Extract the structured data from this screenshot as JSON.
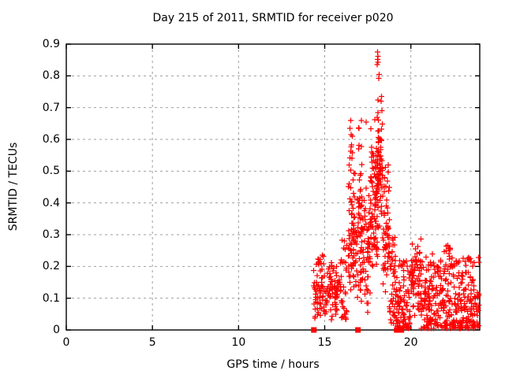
{
  "chart_data": {
    "type": "scatter",
    "title": "Day 215 of 2011, SRMTID for receiver p020",
    "xlabel": "GPS time / hours",
    "ylabel": "SRMTID / TECUs",
    "xlim": [
      0,
      24
    ],
    "ylim": [
      0,
      0.9
    ],
    "xticks": [
      0,
      5,
      10,
      15,
      20
    ],
    "xtick_labels": [
      "0",
      "5",
      "10",
      "15",
      "20"
    ],
    "yticks": [
      0,
      0.1,
      0.2,
      0.3,
      0.4,
      0.5,
      0.6,
      0.7,
      0.8,
      0.9
    ],
    "ytick_labels": [
      "0",
      "0.1",
      "0.2",
      "0.3",
      "0.4",
      "0.5",
      "0.6",
      "0.7",
      "0.8",
      "0.9"
    ],
    "grid": true,
    "grid_style": "dashed",
    "grid_color": "#9e9e9e",
    "axis_color": "#000000",
    "text_color": "#000000",
    "background_color": "#ffffff",
    "legend": "none",
    "series": [
      {
        "name": "srmtid-points",
        "marker": "plus",
        "color": "#ff0000",
        "marker_size": 7,
        "seed": 2011215,
        "clusters": [
          {
            "n": 130,
            "x": [
              14.35,
              15.95
            ],
            "y": [
              0.015,
              0.225
            ],
            "dist": "mid"
          },
          {
            "n": 8,
            "x": [
              14.4,
              15.1
            ],
            "y": [
              0.2,
              0.265
            ],
            "dist": "uniform"
          },
          {
            "n": 30,
            "x": [
              15.95,
              16.35
            ],
            "y": [
              0.03,
              0.3
            ],
            "dist": "low"
          },
          {
            "n": 40,
            "x": [
              16.35,
              16.65
            ],
            "y": [
              0.08,
              0.48
            ],
            "dist": "mid"
          },
          {
            "n": 9,
            "x": [
              16.42,
              16.6
            ],
            "y": [
              0.5,
              0.66
            ],
            "dist": "uniform"
          },
          {
            "n": 95,
            "x": [
              16.65,
              17.25
            ],
            "y": [
              0.08,
              0.55
            ],
            "dist": "mid"
          },
          {
            "n": 6,
            "x": [
              16.95,
              17.15
            ],
            "y": [
              0.55,
              0.66
            ],
            "dist": "uniform"
          },
          {
            "n": 50,
            "x": [
              17.25,
              17.65
            ],
            "y": [
              0.05,
              0.47
            ],
            "dist": "mid"
          },
          {
            "n": 85,
            "x": [
              17.65,
              18.1
            ],
            "y": [
              0.12,
              0.68
            ],
            "dist": "mid"
          },
          {
            "n": 65,
            "x": [
              18.05,
              18.35
            ],
            "y": [
              0.28,
              0.75
            ],
            "dist": "mid"
          },
          {
            "n": 60,
            "x": [
              18.35,
              18.75
            ],
            "y": [
              0.08,
              0.55
            ],
            "dist": "mid"
          },
          {
            "n": 45,
            "x": [
              18.75,
              19.15
            ],
            "y": [
              0.02,
              0.3
            ],
            "dist": "low"
          },
          {
            "n": 90,
            "x": [
              19.15,
              19.95
            ],
            "y": [
              0.005,
              0.22
            ],
            "dist": "low"
          },
          {
            "n": 70,
            "x": [
              19.95,
              20.6
            ],
            "y": [
              0.02,
              0.3
            ],
            "dist": "mid"
          },
          {
            "n": 85,
            "x": [
              20.6,
              21.35
            ],
            "y": [
              0.005,
              0.25
            ],
            "dist": "low"
          },
          {
            "n": 60,
            "x": [
              21.35,
              21.9
            ],
            "y": [
              0.005,
              0.22
            ],
            "dist": "low"
          },
          {
            "n": 60,
            "x": [
              21.9,
              22.4
            ],
            "y": [
              0.005,
              0.27
            ],
            "dist": "low"
          },
          {
            "n": 55,
            "x": [
              22.4,
              22.9
            ],
            "y": [
              0.005,
              0.22
            ],
            "dist": "low"
          },
          {
            "n": 55,
            "x": [
              22.9,
              23.4
            ],
            "y": [
              0.005,
              0.25
            ],
            "dist": "low"
          },
          {
            "n": 60,
            "x": [
              23.4,
              23.95
            ],
            "y": [
              0.005,
              0.23
            ],
            "dist": "low"
          }
        ],
        "notable_points": [
          [
            18.07,
            0.875
          ],
          [
            18.09,
            0.862
          ],
          [
            18.06,
            0.852
          ],
          [
            18.1,
            0.843
          ],
          [
            18.05,
            0.836
          ],
          [
            18.16,
            0.805
          ],
          [
            18.13,
            0.792
          ],
          [
            18.3,
            0.735
          ],
          [
            18.27,
            0.72
          ],
          [
            17.4,
            0.655
          ],
          [
            16.5,
            0.66
          ],
          [
            16.47,
            0.635
          ],
          [
            16.53,
            0.615
          ]
        ]
      },
      {
        "name": "flag-markers",
        "marker": "filled-square",
        "color": "#ff0000",
        "marker_size": 7,
        "points": [
          [
            14.37,
            0
          ],
          [
            16.93,
            0
          ],
          [
            19.18,
            0
          ],
          [
            19.45,
            0
          ]
        ]
      }
    ]
  }
}
